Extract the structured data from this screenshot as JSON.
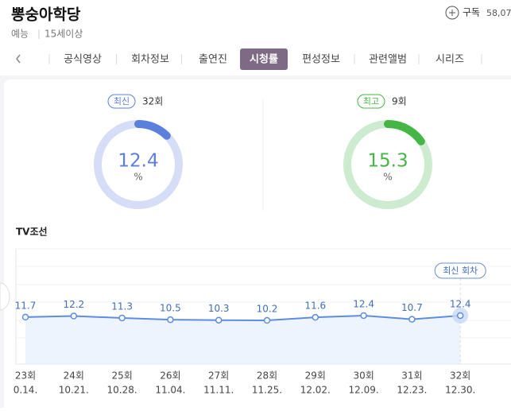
{
  "header": {
    "title": "뽕숭아학당",
    "subscribe": "구독",
    "subscribers": "58,07",
    "genre": "예능",
    "rating": "15세이상"
  },
  "tabs": [
    "공식영상",
    "회차정보",
    "출연진",
    "시청률",
    "편성정보",
    "관련앨범",
    "시리즈"
  ],
  "active_tab": 3,
  "chart_data": [
    {
      "type": "gauge",
      "badge": "최신",
      "episode": "32회",
      "value": 12.4,
      "unit": "%",
      "lim": [
        0,
        100
      ],
      "color": "#5b7fdc",
      "track": "#d5def6"
    },
    {
      "type": "gauge",
      "badge": "최고",
      "episode": "9회",
      "value": 15.3,
      "unit": "%",
      "lim": [
        0,
        100
      ],
      "color": "#45b545",
      "track": "#cdeccf"
    },
    {
      "type": "line",
      "title": "TV조선",
      "categories": [
        "23회",
        "24회",
        "25회",
        "26회",
        "27회",
        "28회",
        "29회",
        "30회",
        "31회",
        "32회"
      ],
      "dates": [
        "0.14.",
        "10.21.",
        "10.28.",
        "11.04.",
        "11.11.",
        "11.25.",
        "12.02.",
        "12.09.",
        "12.23.",
        "12.30."
      ],
      "values": [
        11.7,
        12.2,
        11.3,
        10.5,
        10.3,
        10.2,
        11.6,
        12.4,
        10.7,
        12.4
      ],
      "annotation": "최신 회차",
      "color": "#5b8ee0",
      "ylim": [
        0,
        43
      ]
    }
  ]
}
